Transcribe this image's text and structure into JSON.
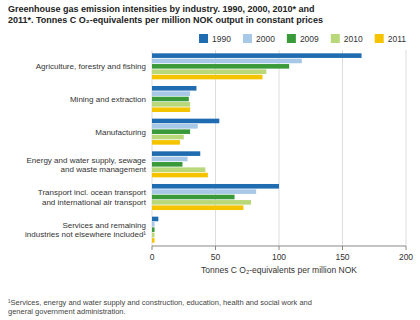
{
  "chart_data": {
    "type": "bar",
    "orientation": "horizontal",
    "title": "Greenhouse gas emission intensities by industry. 1990, 2000, 2010* and\n2011*. Tonnes C O₂-equivalents per million NOK output in constant prices",
    "categories": [
      "Agriculture, forestry and fishing",
      "Mining and extraction",
      "Manufacturing",
      "Energy and water supply, sewage\nand waste management",
      "Transport incl. ocean transport\nand international air transport",
      "Services and remaining\nindustries not elsewhere included¹"
    ],
    "series": [
      {
        "name": "1990",
        "color": "#1f6cb0",
        "values": [
          165,
          35,
          53,
          38,
          100,
          5
        ]
      },
      {
        "name": "2000",
        "color": "#a8c8e8",
        "values": [
          118,
          30,
          36,
          28,
          82,
          2
        ]
      },
      {
        "name": "2009",
        "color": "#3a9a3a",
        "values": [
          108,
          29,
          30,
          24,
          65,
          2
        ]
      },
      {
        "name": "2010",
        "color": "#b8d87a",
        "values": [
          90,
          30,
          25,
          42,
          78,
          2
        ]
      },
      {
        "name": "2011",
        "color": "#f5c400",
        "values": [
          87,
          30,
          22,
          44,
          72,
          2
        ]
      }
    ],
    "xlabel": "Tonnes C O₂-equivalents per million NOK",
    "xlim": [
      0,
      200
    ],
    "xticks": [
      0,
      50,
      100,
      150,
      200
    ],
    "grid": true,
    "legend": "upper right",
    "annotations": [
      "¹Services, energy and water supply and construction, education, health and social work and\ngeneral government administration."
    ]
  }
}
